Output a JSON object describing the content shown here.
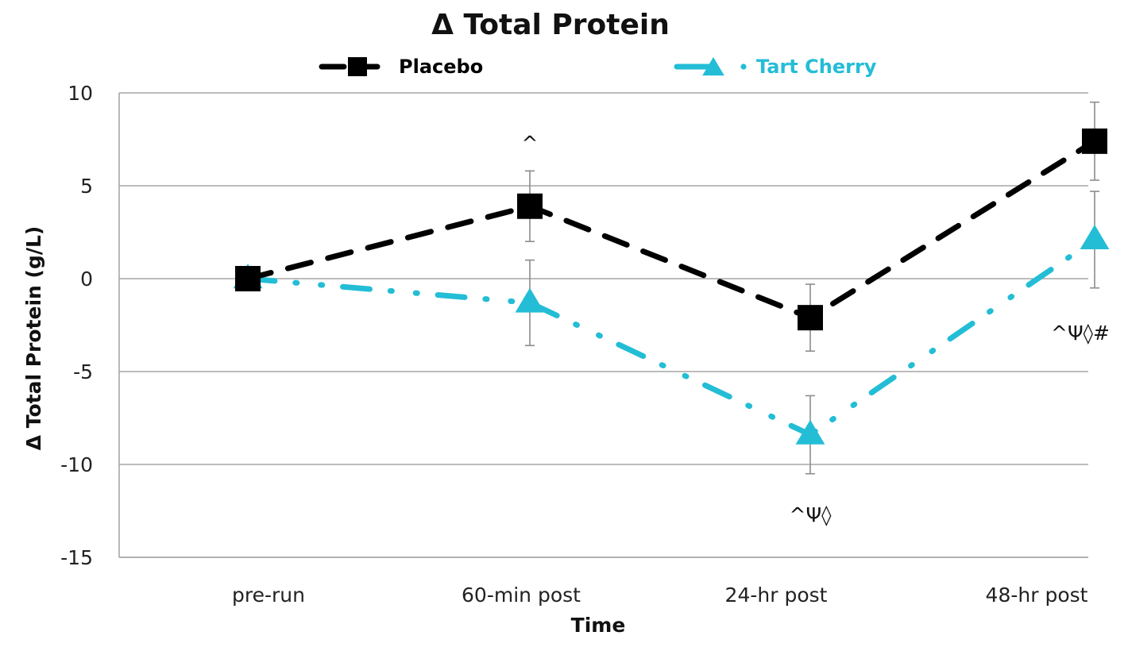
{
  "chart_data": {
    "type": "line",
    "title": "Δ Total Protein",
    "xlabel": "Time",
    "ylabel": "Δ Total Protein (g/L)",
    "categories": [
      "pre-run",
      "60-min post",
      "24-hr post",
      "48-hr post"
    ],
    "ylim": [
      -15,
      10
    ],
    "yticks": [
      10,
      5,
      0,
      -5,
      -10,
      -15
    ],
    "grid": true,
    "legend_position": "top",
    "series": [
      {
        "name": "Placebo",
        "color": "#000000",
        "marker": "square",
        "line_style": "dashed",
        "values": [
          0,
          3.9,
          -2.1,
          7.4
        ],
        "errors": [
          0,
          1.9,
          1.8,
          2.1
        ]
      },
      {
        "name": "Tart Cherry",
        "color": "#23bdd6",
        "marker": "triangle",
        "line_style": "dash-dot",
        "values": [
          0,
          -1.3,
          -8.4,
          2.1
        ],
        "errors": [
          0,
          2.3,
          2.1,
          2.6
        ]
      }
    ],
    "annotations": [
      {
        "category": "60-min post",
        "text": "^",
        "y": 7.3
      },
      {
        "category": "24-hr post",
        "text": "^Ψ◊",
        "y": -12.7
      },
      {
        "category": "48-hr post",
        "text": "^Ψ◊#",
        "y": -2.9
      }
    ]
  }
}
